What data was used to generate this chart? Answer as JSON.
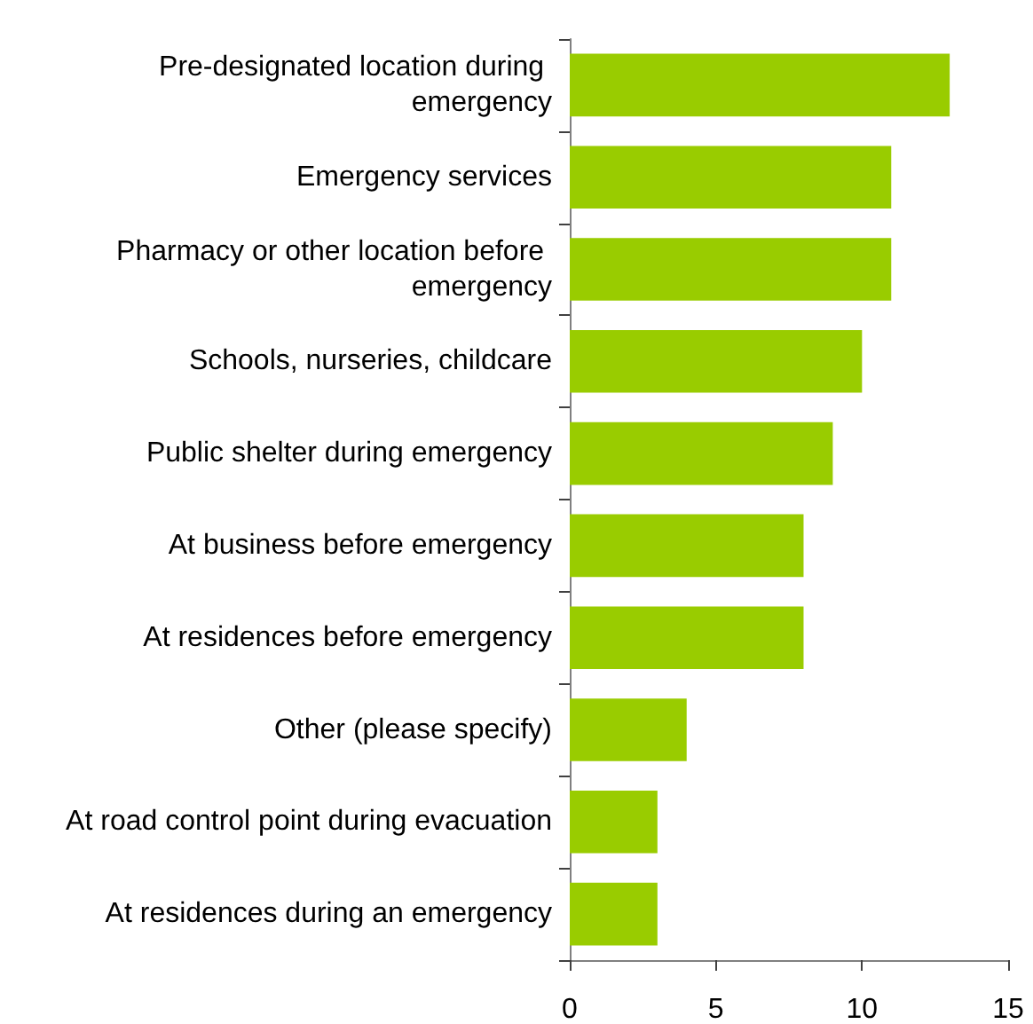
{
  "chart_data": {
    "type": "bar",
    "orientation": "horizontal",
    "categories": [
      "Pre-designated location during emergency",
      "Emergency services",
      "Pharmacy or other location before emergency",
      "Schools, nurseries, childcare",
      "Public shelter during emergency",
      "At business before emergency",
      "At residences before emergency",
      "Other (please specify)",
      "At road control point during evacuation",
      "At residences during an emergency"
    ],
    "values": [
      13,
      11,
      11,
      10,
      9,
      8,
      8,
      4,
      3,
      3
    ],
    "color": "#99cc00",
    "xlim": [
      0,
      15
    ],
    "xticks": [
      0,
      5,
      10,
      15
    ]
  }
}
